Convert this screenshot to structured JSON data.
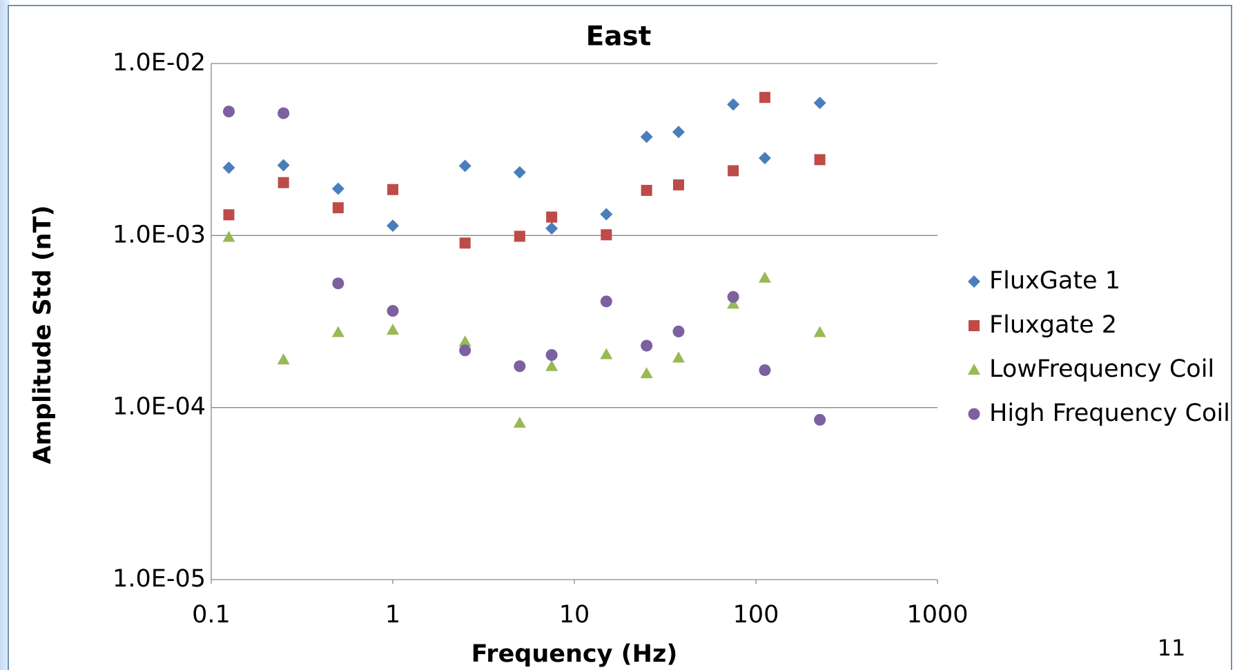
{
  "chart_data": {
    "type": "scatter",
    "title": "East",
    "x_label": "Frequency (Hz)",
    "y_label": "Amplitude Std (nT)",
    "x_log": true,
    "y_log": true,
    "grid": true,
    "legend": "right",
    "xlim": [
      0.1,
      1000
    ],
    "xticks": [
      0.1,
      1,
      10,
      100,
      1000
    ],
    "ylim": [
      1e-05,
      0.01
    ],
    "yticks": [
      {
        "value": 1e-05,
        "label": "1.0E-05"
      },
      {
        "value": 0.0001,
        "label": "1.0E-04"
      },
      {
        "value": 0.001,
        "label": "1.0E-03"
      },
      {
        "value": 0.01,
        "label": "1.0E-02"
      }
    ],
    "x": [
      0.125,
      0.25,
      0.5,
      1,
      2.5,
      5,
      7.5,
      15,
      25,
      37.5,
      75,
      112,
      225
    ],
    "series": [
      {
        "name": "FluxGate 1",
        "color": "#4a7ebb",
        "marker": "diamond",
        "values": [
          0.00248,
          0.00256,
          0.00187,
          0.00114,
          0.00254,
          0.00233,
          0.0011,
          0.00133,
          0.00375,
          0.004,
          0.00578,
          0.00282,
          0.0059
        ]
      },
      {
        "name": "Fluxgate 2",
        "color": "#be4b48",
        "marker": "square",
        "values": [
          0.00132,
          0.00203,
          0.00145,
          0.00185,
          0.000904,
          0.00099,
          0.00128,
          0.00101,
          0.00183,
          0.00197,
          0.00238,
          0.00635,
          0.00276
        ]
      },
      {
        "name": "LowFrequency Coil",
        "color": "#98b954",
        "marker": "triangle",
        "values": [
          0.00098,
          0.00019,
          0.000274,
          0.000283,
          0.000242,
          8.15e-05,
          0.000174,
          0.000204,
          0.000158,
          0.000195,
          0.000401,
          0.000568,
          0.000274
        ]
      },
      {
        "name": "High Frequency Coil",
        "color": "#7d60a0",
        "marker": "circle",
        "values": [
          0.00526,
          0.00514,
          0.000527,
          0.000365,
          0.000215,
          0.000174,
          0.000202,
          0.000414,
          0.000229,
          0.000277,
          0.00044,
          0.000165,
          8.49e-05
        ]
      }
    ]
  },
  "page_number": "11"
}
